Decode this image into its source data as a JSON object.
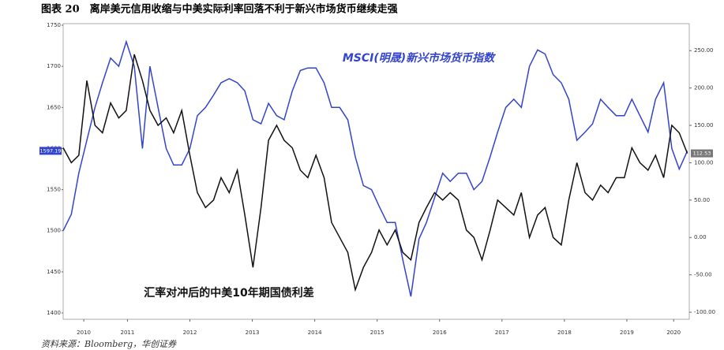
{
  "chart_data": {
    "type": "line",
    "title": "图表 20　离岸美元信用收缩与中美实际利率回落不利于新兴市场货币继续走强",
    "source": "资料来源：Bloomberg，华创证券",
    "x": [
      2010.47,
      2010.6,
      2010.72,
      2010.85,
      2010.98,
      2011.1,
      2011.23,
      2011.36,
      2011.48,
      2011.61,
      2011.74,
      2011.86,
      2011.99,
      2012.12,
      2012.24,
      2012.37,
      2012.5,
      2012.62,
      2012.75,
      2012.88,
      2013.0,
      2013.13,
      2013.26,
      2013.38,
      2013.51,
      2013.64,
      2013.76,
      2013.89,
      2014.01,
      2014.14,
      2014.27,
      2014.39,
      2014.52,
      2014.65,
      2014.77,
      2014.9,
      2015.03,
      2015.15,
      2015.28,
      2015.41,
      2015.53,
      2015.66,
      2015.79,
      2015.91,
      2016.04,
      2016.17,
      2016.29,
      2016.42,
      2016.55,
      2016.67,
      2016.8,
      2016.93,
      2017.05,
      2017.18,
      2017.31,
      2017.43,
      2017.56,
      2017.69,
      2017.81,
      2017.94,
      2018.07,
      2018.19,
      2018.32,
      2018.45,
      2018.57,
      2018.7,
      2018.83,
      2018.95,
      2019.08,
      2019.2,
      2019.33,
      2019.46,
      2019.58,
      2019.71,
      2019.84,
      2019.96,
      2020.09,
      2020.22,
      2020.34,
      2020.47
    ],
    "xlim": [
      2010.47,
      2020.5
    ],
    "xticks": [
      {
        "value": 2010.8,
        "label": "2010"
      },
      {
        "value": 2011.5,
        "label": "2011"
      },
      {
        "value": 2012.5,
        "label": "2012"
      },
      {
        "value": 2013.5,
        "label": "2013"
      },
      {
        "value": 2014.5,
        "label": "2014"
      },
      {
        "value": 2015.5,
        "label": "2015"
      },
      {
        "value": 2016.5,
        "label": "2016"
      },
      {
        "value": 2017.5,
        "label": "2017"
      },
      {
        "value": 2018.5,
        "label": "2018"
      },
      {
        "value": 2019.5,
        "label": "2019"
      },
      {
        "value": 2020.25,
        "label": "2020"
      }
    ],
    "ylim": [
      1400,
      1750
    ],
    "yticks": [
      1400,
      1450,
      1500,
      1550,
      1600,
      1650,
      1700,
      1750
    ],
    "y2lim": [
      -101,
      284
    ],
    "y2ticks": [
      {
        "value": -100,
        "label": "-100.00"
      },
      {
        "value": -50,
        "label": "-50.00"
      },
      {
        "value": 0,
        "label": "0.00"
      },
      {
        "value": 50,
        "label": "50.00"
      },
      {
        "value": 100,
        "label": "100.00"
      },
      {
        "value": 150,
        "label": "150.00"
      },
      {
        "value": 200,
        "label": "200.00"
      },
      {
        "value": 250,
        "label": "250.00"
      }
    ],
    "series": [
      {
        "name": "MSCI(明晟)新兴市场货币指数",
        "color": "#3344cc",
        "axis": "y",
        "values": [
          1500,
          1520,
          1570,
          1610,
          1650,
          1680,
          1710,
          1700,
          1730,
          1700,
          1600,
          1700,
          1650,
          1600,
          1580,
          1580,
          1600,
          1640,
          1650,
          1665,
          1680,
          1685,
          1680,
          1670,
          1635,
          1630,
          1655,
          1640,
          1635,
          1670,
          1695,
          1698,
          1698,
          1680,
          1650,
          1650,
          1635,
          1590,
          1555,
          1550,
          1530,
          1510,
          1510,
          1465,
          1420,
          1490,
          1510,
          1540,
          1570,
          1560,
          1570,
          1570,
          1550,
          1560,
          1590,
          1620,
          1650,
          1660,
          1650,
          1700,
          1720,
          1715,
          1690,
          1680,
          1660,
          1610,
          1620,
          1630,
          1660,
          1650,
          1640,
          1640,
          1660,
          1640,
          1620,
          1660,
          1680,
          1600,
          1575,
          1597.19
        ]
      },
      {
        "name": "汇率对冲后的中美10年期国债利差",
        "color": "#111111",
        "axis": "y2",
        "values": [
          120,
          100,
          110,
          210,
          150,
          140,
          180,
          160,
          170,
          245,
          210,
          170,
          150,
          160,
          140,
          170,
          110,
          60,
          40,
          50,
          80,
          60,
          90,
          30,
          -40,
          40,
          130,
          150,
          130,
          120,
          90,
          80,
          110,
          80,
          20,
          0,
          -20,
          -70,
          -40,
          -20,
          10,
          -10,
          10,
          -20,
          -30,
          20,
          40,
          60,
          50,
          60,
          50,
          10,
          0,
          -30,
          10,
          50,
          40,
          30,
          60,
          0,
          30,
          40,
          0,
          -10,
          50,
          100,
          60,
          50,
          70,
          60,
          80,
          80,
          120,
          100,
          90,
          110,
          80,
          150,
          140,
          112.53
        ]
      }
    ]
  }
}
